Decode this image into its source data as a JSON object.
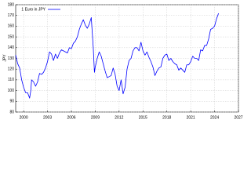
{
  "chart_data": {
    "type": "line",
    "ylabel": "JPY",
    "x": [
      1999.0,
      1999.25,
      1999.5,
      1999.75,
      2000.0,
      2000.25,
      2000.5,
      2000.75,
      2000.9,
      2001.0,
      2001.25,
      2001.5,
      2001.75,
      2002.0,
      2002.25,
      2002.5,
      2002.75,
      2003.0,
      2003.25,
      2003.5,
      2003.75,
      2004.0,
      2004.25,
      2004.5,
      2004.75,
      2005.0,
      2005.25,
      2005.5,
      2005.75,
      2006.0,
      2006.25,
      2006.5,
      2006.75,
      2007.0,
      2007.25,
      2007.5,
      2007.75,
      2008.0,
      2008.25,
      2008.5,
      2008.75,
      2008.9,
      2009.0,
      2009.25,
      2009.5,
      2009.75,
      2010.0,
      2010.25,
      2010.5,
      2010.75,
      2011.0,
      2011.25,
      2011.5,
      2011.75,
      2012.0,
      2012.25,
      2012.5,
      2012.75,
      2013.0,
      2013.25,
      2013.5,
      2013.75,
      2014.0,
      2014.25,
      2014.5,
      2014.75,
      2015.0,
      2015.25,
      2015.5,
      2015.75,
      2016.0,
      2016.25,
      2016.5,
      2016.75,
      2017.0,
      2017.25,
      2017.5,
      2017.75,
      2018.0,
      2018.25,
      2018.5,
      2018.75,
      2019.0,
      2019.25,
      2019.5,
      2019.75,
      2020.0,
      2020.25,
      2020.5,
      2020.75,
      2021.0,
      2021.25,
      2021.5,
      2021.75,
      2022.0,
      2022.25,
      2022.5,
      2022.75,
      2023.0,
      2023.25,
      2023.5,
      2023.75,
      2024.0,
      2024.25,
      2024.5
    ],
    "series": [
      {
        "name": "1 Euro in JPY",
        "color": "#0000ff",
        "values": [
          133,
          125,
          121,
          110,
          103,
          98,
          98,
          93,
          100,
          110,
          108,
          104,
          108,
          116,
          115,
          117,
          121,
          127,
          136,
          134,
          128,
          134,
          130,
          135,
          138,
          137,
          136,
          135,
          140,
          139,
          144,
          146,
          150,
          157,
          162,
          166,
          161,
          158,
          162,
          168,
          140,
          117,
          122,
          130,
          136,
          132,
          125,
          118,
          112,
          113,
          114,
          121,
          115,
          104,
          100,
          110,
          97,
          103,
          120,
          128,
          130,
          137,
          140,
          140,
          137,
          145,
          137,
          133,
          136,
          131,
          127,
          122,
          114,
          118,
          121,
          122,
          130,
          133,
          134,
          128,
          130,
          127,
          125,
          124,
          119,
          121,
          119,
          117,
          124,
          124,
          127,
          132,
          130,
          130,
          128,
          138,
          137,
          142,
          142,
          148,
          157,
          158,
          160,
          167,
          172
        ]
      }
    ],
    "xlim": [
      1999,
      2027
    ],
    "xticks": [
      2000,
      2003,
      2006,
      2009,
      2012,
      2015,
      2018,
      2021,
      2024,
      2027
    ],
    "ylim": [
      80,
      180
    ],
    "yticks": [
      80,
      90,
      100,
      110,
      120,
      130,
      140,
      150,
      160,
      170,
      180
    ],
    "grid": true,
    "legend": "upper left"
  }
}
